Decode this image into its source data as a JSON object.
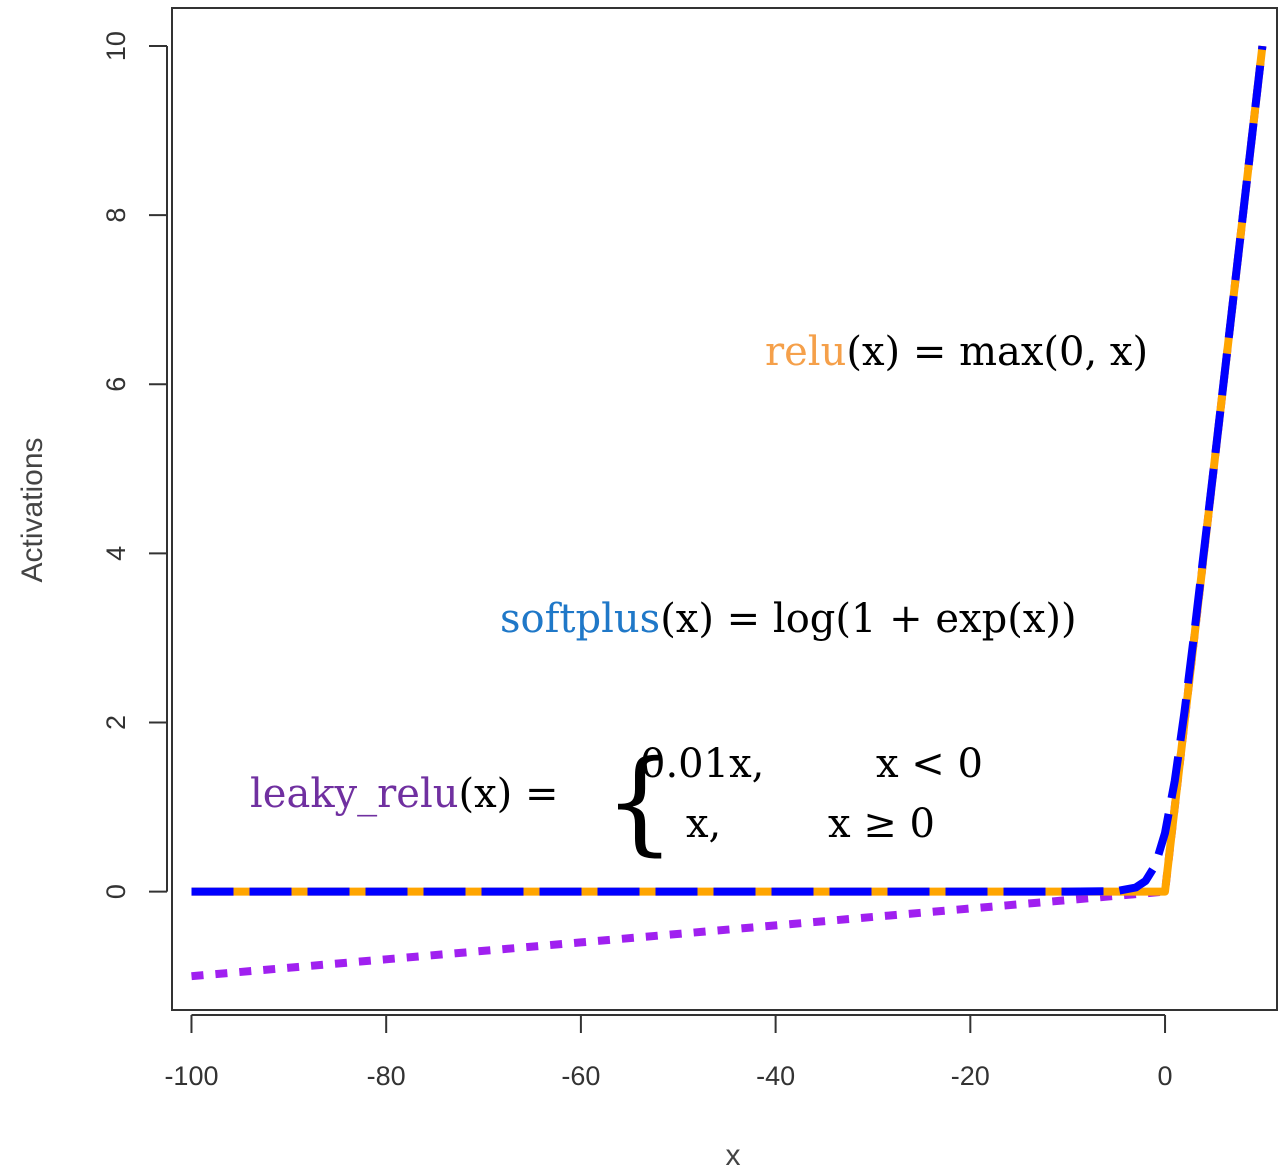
{
  "chart_data": {
    "type": "line",
    "xlabel": "x",
    "ylabel": "Activations",
    "xlim": [
      -102,
      11.5
    ],
    "ylim": [
      -1.4,
      10.45
    ],
    "x_ticks": [
      -100,
      -80,
      -60,
      -40,
      -20,
      0
    ],
    "y_ticks": [
      0,
      2,
      4,
      6,
      8,
      10
    ],
    "x_tick_labels": [
      "-100",
      "-80",
      "-60",
      "-40",
      "-20",
      "0"
    ],
    "y_tick_labels": [
      "0",
      "2",
      "4",
      "6",
      "8",
      "10"
    ],
    "grid": false,
    "series": [
      {
        "name": "leaky_relu",
        "color": "#a020f0",
        "line_style": "dotted",
        "x": [
          -100,
          -80,
          -60,
          -40,
          -20,
          -10,
          -5,
          -2,
          0,
          2,
          5,
          10
        ],
        "values": [
          -1.0,
          -0.8,
          -0.6,
          -0.4,
          -0.2,
          -0.1,
          -0.05,
          -0.02,
          0,
          2,
          5,
          10
        ]
      },
      {
        "name": "relu",
        "color": "#ffa500",
        "line_style": "solid",
        "x": [
          -100,
          -80,
          -60,
          -40,
          -20,
          -10,
          -5,
          -2,
          0,
          2,
          5,
          10
        ],
        "values": [
          0,
          0,
          0,
          0,
          0,
          0,
          0,
          0,
          0,
          2,
          5,
          10
        ]
      },
      {
        "name": "softplus",
        "color": "#0000ff",
        "line_style": "dashed",
        "x": [
          -100,
          -80,
          -60,
          -40,
          -20,
          -10,
          -5,
          -3,
          -2,
          -1,
          0,
          1,
          2,
          3,
          5,
          10
        ],
        "values": [
          0,
          0,
          0,
          0,
          0,
          5e-05,
          0.0067,
          0.0486,
          0.127,
          0.313,
          0.693,
          1.313,
          2.127,
          3.049,
          5.007,
          10.0
        ]
      }
    ],
    "annotations": {
      "relu": {
        "name": "relu",
        "lhs": "(x) = ",
        "rhs": "max(0, x)",
        "color": "#f5a04a"
      },
      "softplus": {
        "name": "softplus",
        "lhs": "(x) = ",
        "rhs": "log(1 + exp(x))",
        "color": "#1f78c8"
      },
      "leaky": {
        "name": "leaky_relu",
        "lhs": "(x) = ",
        "color": "#7030a0",
        "case1_value": "0.01x,",
        "case1_cond": "x < 0",
        "case2_value": "x,",
        "case2_cond": "x ≥ 0"
      }
    }
  }
}
